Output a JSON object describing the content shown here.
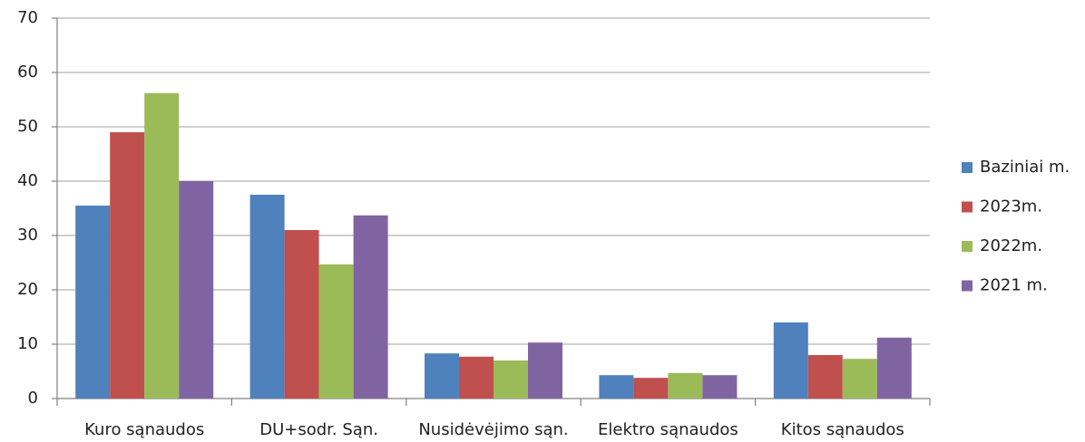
{
  "chart_data": {
    "type": "bar",
    "categories": [
      "Kuro sąnaudos",
      "DU+sodr. Sąn.",
      "Nusidėvėjimo sąn.",
      "Elektro sąnaudos",
      "Kitos sąnaudos"
    ],
    "series": [
      {
        "name": "Baziniai m.",
        "color": "#4f81bd",
        "values": [
          35.5,
          37.5,
          8.3,
          4.3,
          14
        ]
      },
      {
        "name": "2023m.",
        "color": "#c0504d",
        "values": [
          49,
          31,
          7.7,
          3.8,
          8
        ]
      },
      {
        "name": "2022m.",
        "color": "#9bbb59",
        "values": [
          56.2,
          24.7,
          7,
          4.7,
          7.3
        ]
      },
      {
        "name": "2021 m.",
        "color": "#8064a2",
        "values": [
          40,
          33.7,
          10.3,
          4.3,
          11.2
        ]
      }
    ],
    "ylim": [
      0,
      70
    ],
    "yticks": [
      0,
      10,
      20,
      30,
      40,
      50,
      60,
      70
    ],
    "grid": true,
    "legend": "right"
  }
}
